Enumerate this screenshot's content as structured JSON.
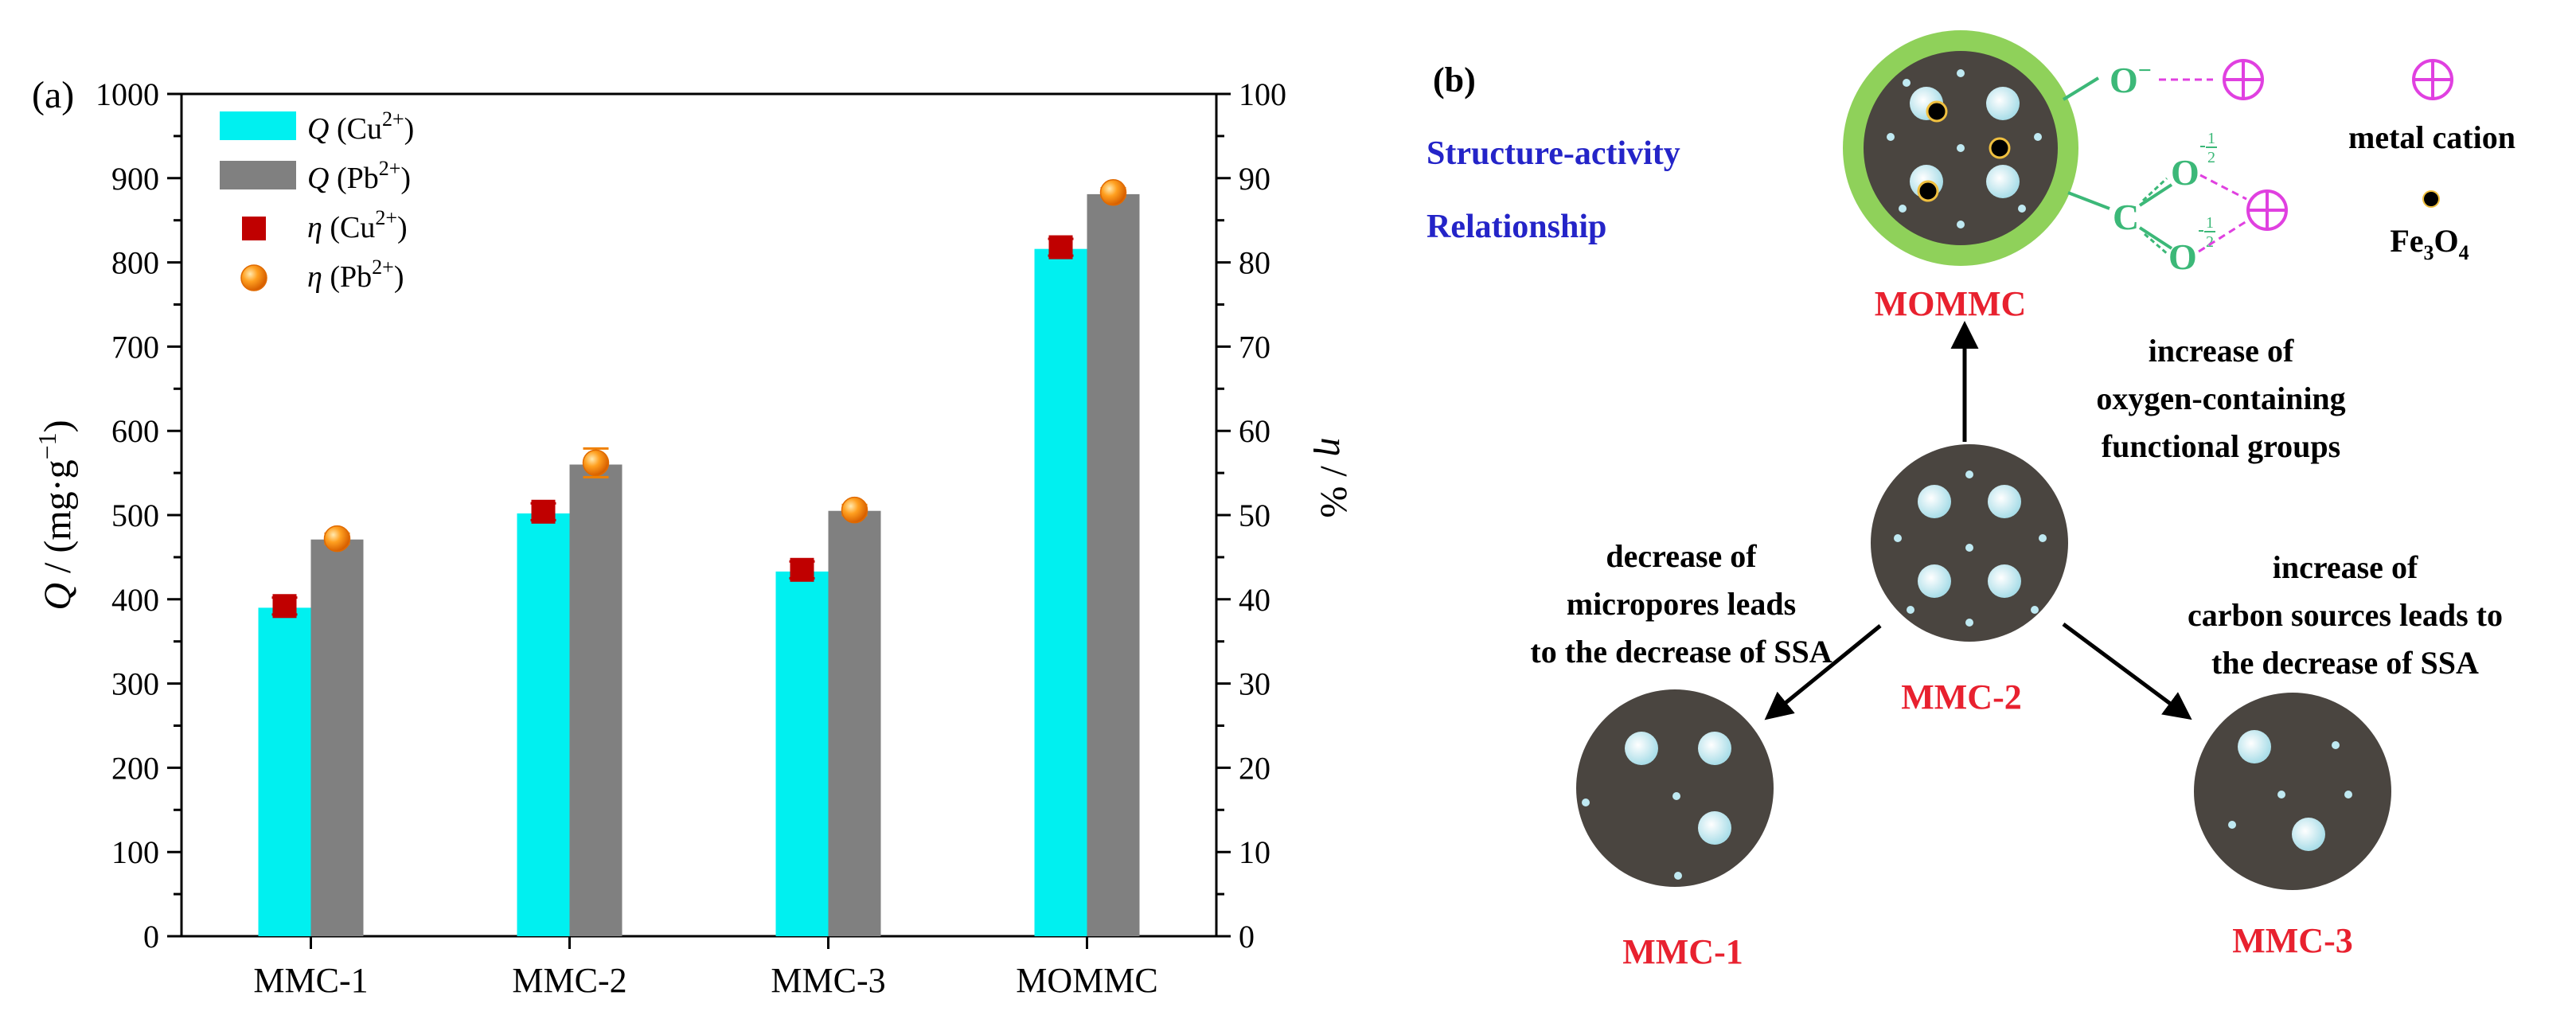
{
  "panel_a": {
    "label": "(a)",
    "ylabel_left_q": "Q",
    "ylabel_left_rest": " / (mg·g",
    "ylabel_left_sup": "−1",
    "ylabel_left_end": ")",
    "ylabel_right_eta": "η",
    "ylabel_right_rest": " / %",
    "legend": [
      {
        "sym": "Q",
        "text": " (Cu",
        "sup": "2+",
        "end": ")"
      },
      {
        "sym": "Q",
        "text": " (Pb",
        "sup": "2+",
        "end": ")"
      },
      {
        "sym": "η",
        "text": " (Cu",
        "sup": "2+",
        "end": ")"
      },
      {
        "sym": "η",
        "text": " (Pb",
        "sup": "2+",
        "end": ")"
      }
    ]
  },
  "chart_data": {
    "type": "bar",
    "title": "",
    "categories": [
      "MMC-1",
      "MMC-2",
      "MMC-3",
      "MOMMC"
    ],
    "xlabel": "",
    "ylabel": "Q / (mg·g−1)",
    "ylim": [
      0,
      1000
    ],
    "yticks": [
      0,
      100,
      200,
      300,
      400,
      500,
      600,
      700,
      800,
      900,
      1000
    ],
    "y2label": "η / %",
    "y2lim": [
      0,
      100
    ],
    "y2ticks": [
      0,
      10,
      20,
      30,
      40,
      50,
      60,
      70,
      80,
      90,
      100
    ],
    "legend_position": "top-left",
    "series": [
      {
        "name": "Q (Cu2+)",
        "kind": "bar",
        "axis": "left",
        "color": "#00f0f0",
        "values": [
          390,
          502,
          433,
          816
        ]
      },
      {
        "name": "Q (Pb2+)",
        "kind": "bar",
        "axis": "left",
        "color": "#808080",
        "values": [
          471,
          560,
          505,
          881
        ]
      },
      {
        "name": "η (Cu2+)",
        "kind": "marker",
        "axis": "right",
        "marker": "square",
        "color": "#c00000",
        "values": [
          39.2,
          50.4,
          43.5,
          81.8
        ],
        "errors": [
          1.0,
          1.0,
          1.0,
          1.0
        ]
      },
      {
        "name": "η (Pb2+)",
        "kind": "marker",
        "axis": "right",
        "marker": "sphere",
        "color": "#f08000",
        "values": [
          47.2,
          56.2,
          50.6,
          88.3
        ],
        "errors": [
          0.6,
          1.7,
          0.6,
          0.5
        ]
      }
    ]
  },
  "panel_b": {
    "label": "(b)",
    "heading_line1": "Structure-activity",
    "heading_line2": "Relationship",
    "group_o_minus": "O",
    "group_o_minus_sup": "−",
    "group_c": "C",
    "group_o_upper": "O",
    "group_o_lower": "O",
    "half_frac_top": "1",
    "half_frac_bot": "2",
    "metal_cation_label": "metal cation",
    "fe3o4_main": "Fe",
    "fe3o4_sub1": "3",
    "fe3o4_o": "O",
    "fe3o4_sub2": "4",
    "mommc_label": "MOMMC",
    "mmc2_label": "MMC-2",
    "mmc1_label": "MMC-1",
    "mmc3_label": "MMC-3",
    "top_text": [
      "increase of",
      "oxygen-containing",
      "functional groups"
    ],
    "left_text": [
      "decrease of",
      "micropores leads",
      "to the decrease of SSA"
    ],
    "right_text": [
      "increase of",
      "carbon sources leads to",
      "the decrease of SSA"
    ],
    "colors": {
      "red_label": "#e8212f",
      "blue_heading": "#2424c8",
      "green": "#3cb878",
      "magenta": "#e040e0",
      "particle": "#4a4540",
      "shell": "#8fd15a",
      "pore": "#bfe9f2"
    }
  }
}
